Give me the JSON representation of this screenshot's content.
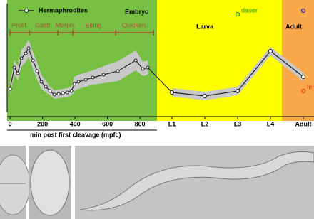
{
  "chart_data": {
    "type": "line",
    "xlabel": "min post first cleavage (mpfc)",
    "xlim": [
      -18,
      905
    ],
    "xticks": [
      0,
      200,
      400,
      600,
      800
    ],
    "ylim": [
      0,
      150
    ],
    "regions": [
      {
        "label": "Embryo",
        "color": "#77c043"
      },
      {
        "label": "Larva",
        "color": "#ffff00"
      },
      {
        "label": "Adult",
        "color": "#f8a84a"
      }
    ],
    "phases": [
      {
        "label": "Prolif.",
        "range": [
          0,
          119
        ]
      },
      {
        "label": "Gastr.",
        "range": [
          119,
          295
        ]
      },
      {
        "label": "Morph.",
        "range": [
          295,
          387
        ]
      },
      {
        "label": "Elong.",
        "range": [
          387,
          651
        ]
      },
      {
        "label": "Quicken.",
        "range": [
          651,
          884
        ]
      }
    ],
    "phase_color": "#a0522d",
    "series": [
      {
        "name": "Hermaphrodites",
        "color": "#222222",
        "band_color": "#c8c8c8",
        "x": [
          0,
          26,
          48,
          70,
          97,
          114,
          141,
          167,
          193,
          220,
          246,
          273,
          299,
          325,
          352,
          378,
          396,
          422,
          466,
          510,
          576,
          664,
          774,
          818,
          848
        ],
        "values": [
          33,
          63,
          55,
          76,
          83,
          90,
          73,
          58,
          43,
          36,
          30,
          25,
          26,
          27,
          28,
          30,
          40,
          43,
          46,
          49,
          53,
          58,
          73,
          61,
          63
        ],
        "error": [
          8,
          10,
          10,
          12,
          12,
          12,
          12,
          12,
          10,
          8,
          6,
          6,
          6,
          6,
          6,
          6,
          10,
          10,
          10,
          10,
          12,
          14,
          14,
          10,
          10
        ]
      }
    ],
    "stages": {
      "categories": [
        "L1",
        "L2",
        "L3",
        "L4",
        "Adult"
      ],
      "values": [
        28,
        23,
        30,
        86,
        50
      ],
      "error": [
        6,
        6,
        6,
        6,
        6
      ]
    },
    "markers": [
      {
        "label": "dauer",
        "stage": 2,
        "value": 138,
        "color": "#1a9a1a"
      },
      {
        "label": "fem",
        "stage": 4,
        "value": 30,
        "color": "#e0401a"
      },
      {
        "stage": 4,
        "value": 143,
        "color": "#3333aa"
      }
    ]
  }
}
